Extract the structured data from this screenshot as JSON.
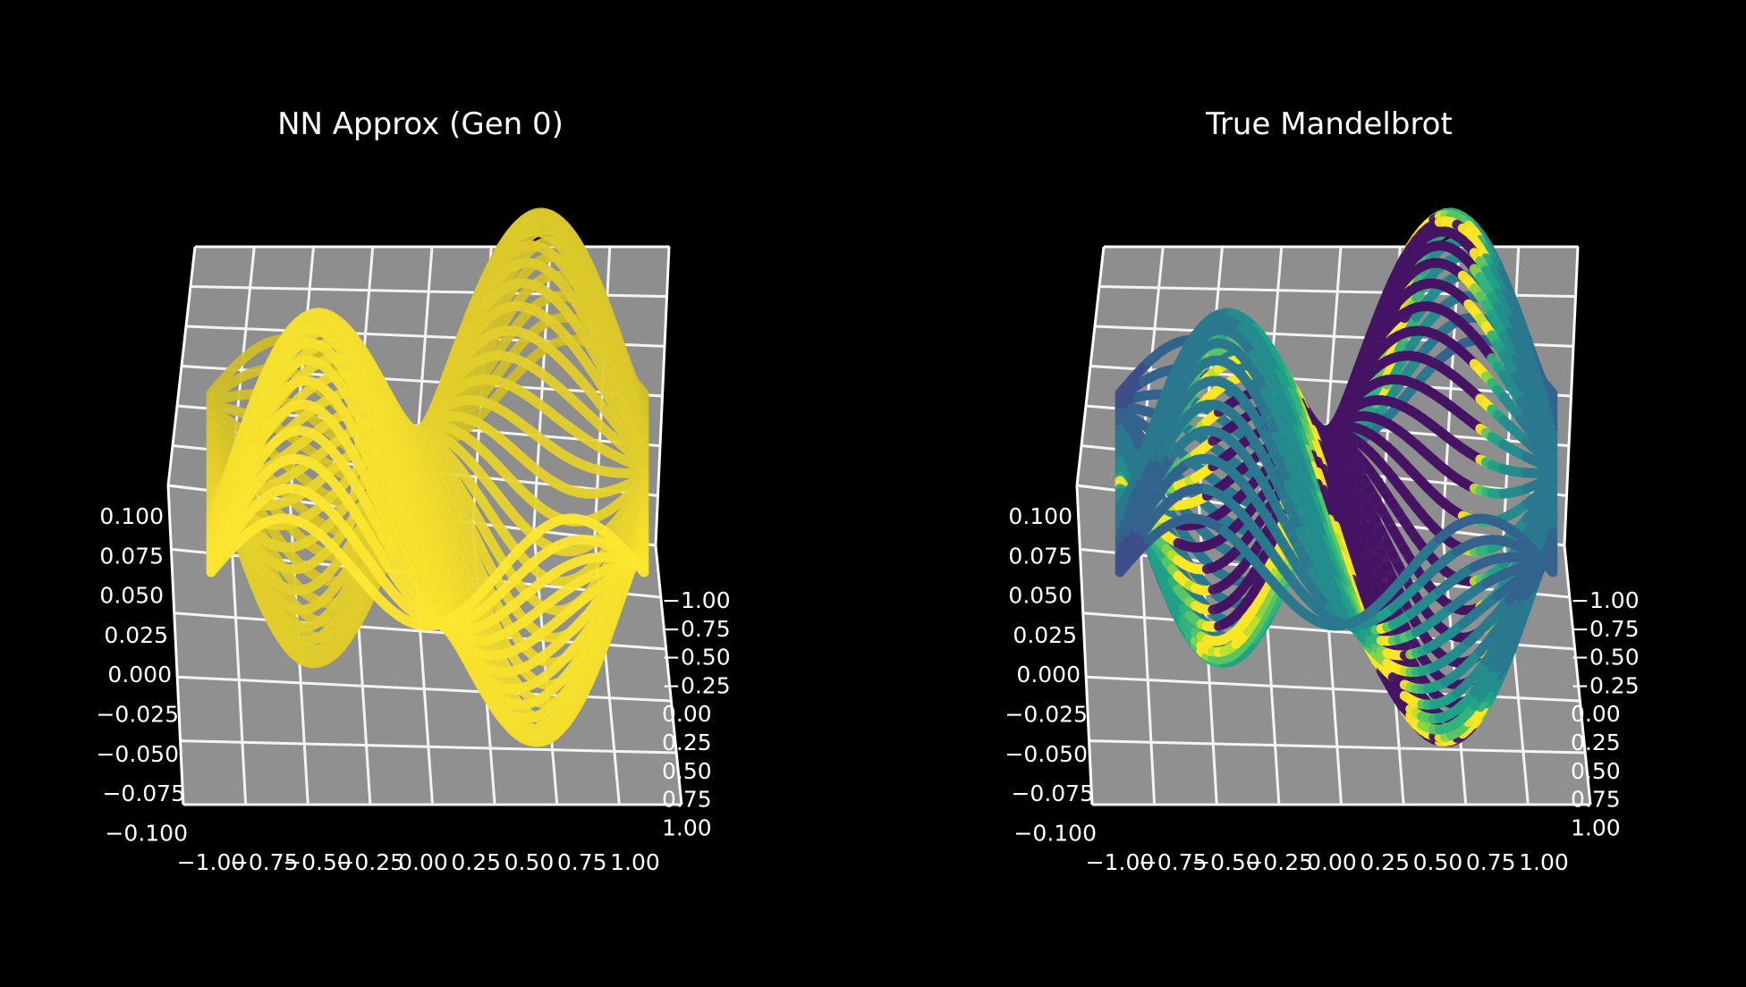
{
  "chart_data": [
    {
      "type": "surface3d",
      "title": "NN Approx (Gen 0)",
      "colormap": "viridis",
      "color_mode": "uniform",
      "surface_color": "#fde725",
      "x_ticks": [
        "−1.00",
        "−0.75",
        "−0.50",
        "−0.25",
        "0.00",
        "0.25",
        "0.50",
        "0.75",
        "1.00"
      ],
      "y_ticks": [
        "−1.00",
        "−0.75",
        "−0.50",
        "−0.25",
        "0.00",
        "0.25",
        "0.50",
        "0.75",
        "1.00"
      ],
      "z_ticks": [
        "−0.100",
        "−0.075",
        "−0.050",
        "−0.025",
        "0.000",
        "0.025",
        "0.050",
        "0.075",
        "0.100"
      ],
      "xlim": [
        -1.0,
        1.0
      ],
      "ylim": [
        -1.0,
        1.0
      ],
      "zlim": [
        -0.1,
        0.1
      ],
      "surface": {
        "function": "0.1*sin(pi*x)*sin(pi*y)-like wave",
        "amplitude": 0.1
      }
    },
    {
      "type": "surface3d",
      "title": "True Mandelbrot",
      "colormap": "viridis",
      "color_mode": "mandelbrot",
      "surface_color": "#3b2f7a",
      "x_ticks": [
        "−1.00",
        "−0.75",
        "−0.50",
        "−0.25",
        "0.00",
        "0.25",
        "0.50",
        "0.75",
        "1.00"
      ],
      "y_ticks": [
        "−1.00",
        "−0.75",
        "−0.50",
        "−0.25",
        "0.00",
        "0.25",
        "0.50",
        "0.75",
        "1.00"
      ],
      "z_ticks": [
        "−0.100",
        "−0.075",
        "−0.050",
        "−0.025",
        "0.000",
        "0.025",
        "0.050",
        "0.075",
        "0.100"
      ],
      "xlim": [
        -1.0,
        1.0
      ],
      "ylim": [
        -1.0,
        1.0
      ],
      "zlim": [
        -0.1,
        0.1
      ],
      "surface": {
        "function": "0.1*sin(pi*x)*sin(pi*y)-like wave",
        "amplitude": 0.1
      }
    }
  ]
}
